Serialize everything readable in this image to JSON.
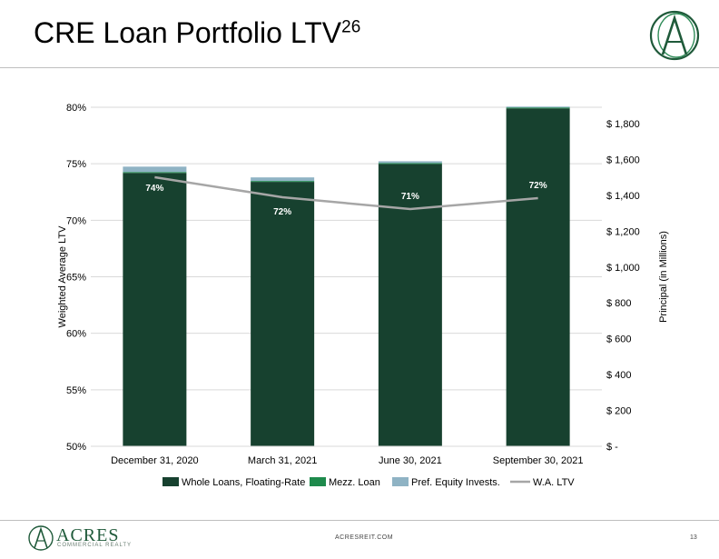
{
  "slide": {
    "title": "CRE Loan Portfolio LTV",
    "title_sup": "26",
    "footer_url": "ACRESREIT.COM",
    "page_number": "13",
    "brand_name": "ACRES",
    "brand_sub": "COMMERCIAL REALTY"
  },
  "colors": {
    "whole": "#17412f",
    "mezz": "#1e8a4c",
    "pref": "#8fb3c4",
    "ltv": "#a6a6a6",
    "brand": "#1f5a3a"
  },
  "chart_data": {
    "type": "bar",
    "stacked": true,
    "categories": [
      "December 31, 2020",
      "March 31, 2021",
      "June 30, 2021",
      "September 30, 2021"
    ],
    "series": [
      {
        "name": "Whole Loans, Floating-Rate",
        "axis": "right",
        "values": [
          1525,
          1475,
          1575,
          1885
        ]
      },
      {
        "name": "Mezz. Loan",
        "axis": "right",
        "values": [
          5,
          5,
          5,
          5
        ]
      },
      {
        "name": "Pref. Equity Invests.",
        "axis": "right",
        "values": [
          30,
          20,
          10,
          5
        ]
      }
    ],
    "line": {
      "name": "W.A. LTV",
      "axis": "left",
      "values": [
        74,
        72,
        71,
        72
      ],
      "labels": [
        "74%",
        "72%",
        "71%",
        "72%"
      ]
    },
    "ylabel": "Weighted Average LTV",
    "y2label": "Principal (in Millions)",
    "ylim": [
      50,
      80
    ],
    "y2lim": [
      0,
      1900
    ],
    "yticks": [
      50,
      55,
      60,
      65,
      70,
      75,
      80
    ],
    "ytick_labels": [
      "50%",
      "55%",
      "60%",
      "65%",
      "70%",
      "75%",
      "80%"
    ],
    "y2ticks": [
      0,
      200,
      400,
      600,
      800,
      1000,
      1200,
      1400,
      1600,
      1800
    ],
    "y2tick_labels": [
      "$ -",
      "$ 200",
      "$ 400",
      "$ 600",
      "$ 800",
      "$ 1,000",
      "$ 1,200",
      "$ 1,400",
      "$ 1,600",
      "$ 1,800"
    ],
    "grid": true,
    "legend": "bottom"
  }
}
